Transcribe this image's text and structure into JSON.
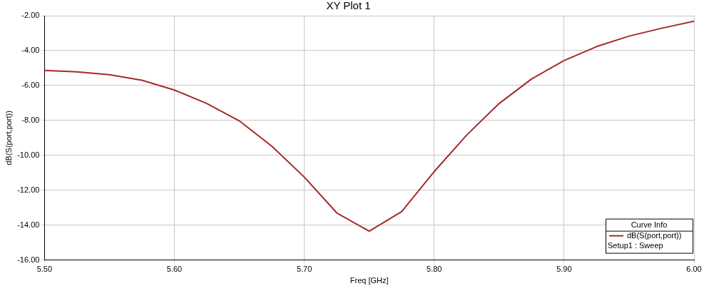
{
  "chart_data": {
    "type": "line",
    "title": "XY Plot 1",
    "xlabel": "Freq [GHz]",
    "ylabel": "dB(S(port,port))",
    "legend_title": "Curve Info",
    "legend": "bottom right",
    "grid": true,
    "marker": "none",
    "line_style": "solid",
    "annotations": [
      "Setup1 : Sweep"
    ],
    "xlim": [
      5.5,
      6.0
    ],
    "ylim": [
      -16,
      -2
    ],
    "xticks": [
      {
        "value": 5.5,
        "label": "5.50"
      },
      {
        "value": 5.6,
        "label": "5.60"
      },
      {
        "value": 5.7,
        "label": "5.70"
      },
      {
        "value": 5.8,
        "label": "5.80"
      },
      {
        "value": 5.9,
        "label": "5.90"
      },
      {
        "value": 6.0,
        "label": "6.00"
      }
    ],
    "yticks": [
      {
        "value": -16,
        "label": "-16.00"
      },
      {
        "value": -14,
        "label": "-14.00"
      },
      {
        "value": -12,
        "label": "-12.00"
      },
      {
        "value": -10,
        "label": "-10.00"
      },
      {
        "value": -8,
        "label": "-8.00"
      },
      {
        "value": -6,
        "label": "-6.00"
      },
      {
        "value": -4,
        "label": "-4.00"
      },
      {
        "value": -2,
        "label": "-2.00"
      }
    ],
    "x": [
      5.5,
      5.525,
      5.55,
      5.575,
      5.6,
      5.625,
      5.65,
      5.675,
      5.7,
      5.725,
      5.75,
      5.775,
      5.8,
      5.825,
      5.85,
      5.875,
      5.9,
      5.925,
      5.95,
      5.975,
      6.0
    ],
    "series": [
      {
        "name": "dB(S(port,port))",
        "color": "#a52a2a",
        "values": [
          -5.14,
          -5.22,
          -5.38,
          -5.7,
          -6.26,
          -7.03,
          -8.03,
          -9.48,
          -11.25,
          -13.3,
          -14.35,
          -13.22,
          -10.93,
          -8.84,
          -7.03,
          -5.62,
          -4.57,
          -3.77,
          -3.17,
          -2.72,
          -2.32
        ]
      }
    ]
  }
}
